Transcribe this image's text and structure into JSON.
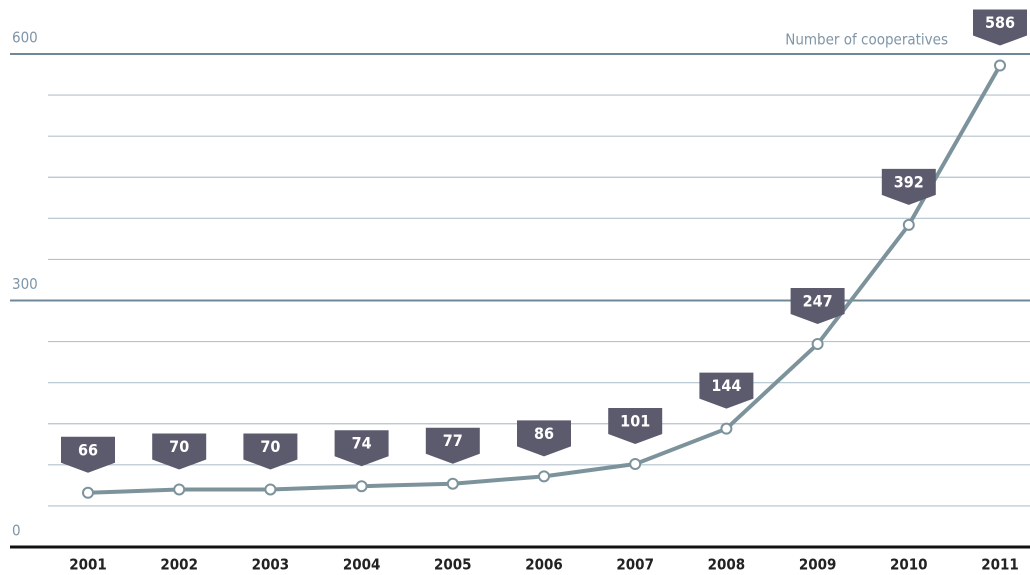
{
  "chart_data": {
    "type": "line",
    "categories": [
      "2001",
      "2002",
      "2003",
      "2004",
      "2005",
      "2006",
      "2007",
      "2008",
      "2009",
      "2010",
      "2011"
    ],
    "series": [
      {
        "name": "Number of cooperatives",
        "color": "#7d939c",
        "values": [
          66,
          70,
          70,
          74,
          77,
          86,
          101,
          144,
          247,
          392,
          586
        ]
      }
    ],
    "ylim": [
      0,
      600
    ],
    "yticks": [
      0,
      300,
      600
    ],
    "minor_yticks": [
      50,
      100,
      150,
      200,
      250,
      350,
      400,
      450,
      500,
      550
    ],
    "grid": true
  }
}
